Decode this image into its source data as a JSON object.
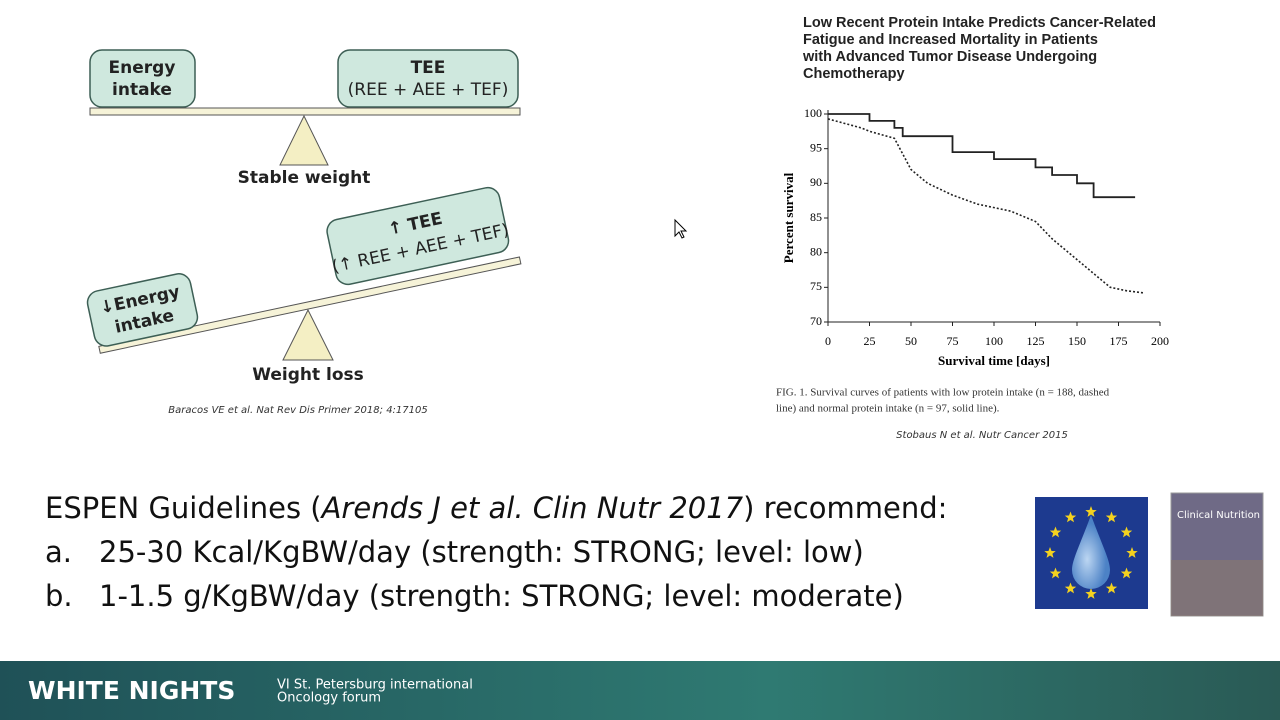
{
  "diagram": {
    "balanced": {
      "left": [
        "Energy",
        "intake"
      ],
      "right": [
        "TEE",
        "(REE + AEE + TEF)"
      ],
      "caption": "Stable weight"
    },
    "tilted": {
      "left": [
        "↓Energy",
        "intake"
      ],
      "right": [
        "↑ TEE",
        "(↑ REE + AEE + TEF)"
      ],
      "caption": "Weight loss"
    },
    "citation": "Baracos VE et al. Nat Rev Dis Primer 2018; 4:17105"
  },
  "article": {
    "title": [
      "Low Recent Protein Intake Predicts Cancer-Related",
      "Fatigue and Increased Mortality in Patients",
      "with Advanced Tumor Disease Undergoing",
      "Chemotherapy"
    ],
    "caption": [
      "FIG. 1.   Survival curves of patients with low protein intake (n = 188, dashed",
      "line) and normal protein intake (n = 97, solid line)."
    ],
    "citation": "Stobaus N et al. Nutr Cancer 2015"
  },
  "chart_data": {
    "type": "line",
    "x_label": "Survival time [days]",
    "y_label": "Percent survival",
    "xlim": [
      0,
      200
    ],
    "ylim": [
      70,
      100
    ],
    "xticks": [
      0,
      25,
      50,
      75,
      100,
      125,
      150,
      175,
      200
    ],
    "yticks": [
      70,
      75,
      80,
      85,
      90,
      95,
      100
    ],
    "series": [
      {
        "color": "#222222",
        "dashed": false,
        "x": [
          0,
          25,
          25,
          40,
          40,
          45,
          45,
          75,
          75,
          100,
          100,
          125,
          125,
          135,
          135,
          150,
          150,
          160,
          160,
          185
        ],
        "values": [
          100,
          100,
          99,
          99,
          98,
          98,
          96.8,
          96.8,
          94.5,
          94.5,
          93.5,
          93.5,
          92.3,
          92.3,
          91.2,
          91.2,
          90,
          90,
          88,
          88
        ]
      },
      {
        "color": "#222222",
        "dashed": true,
        "x": [
          0,
          20,
          25,
          40,
          50,
          60,
          75,
          90,
          110,
          125,
          135,
          150,
          160,
          170,
          180,
          190
        ],
        "values": [
          99.3,
          98,
          97.5,
          96.5,
          92,
          90,
          88.3,
          87,
          86,
          84.5,
          82,
          79,
          77,
          75,
          74.5,
          74.2
        ]
      }
    ]
  },
  "guidelines": {
    "intro": [
      "ESPEN Guidelines (",
      "Arends J et al. Clin Nutr 2017",
      ") recommend:"
    ],
    "items": [
      [
        "a.",
        "25-30 Kcal/KgBW/day (strength: STRONG; level: low)"
      ],
      [
        "b.",
        "1-1.5 g/KgBW/day (strength: STRONG; level: moderate)"
      ]
    ]
  },
  "journal": "Clinical Nutrition",
  "footer": {
    "brand": "WHITE NIGHTS",
    "event": [
      "VI St. Petersburg international",
      "Oncology forum"
    ]
  }
}
